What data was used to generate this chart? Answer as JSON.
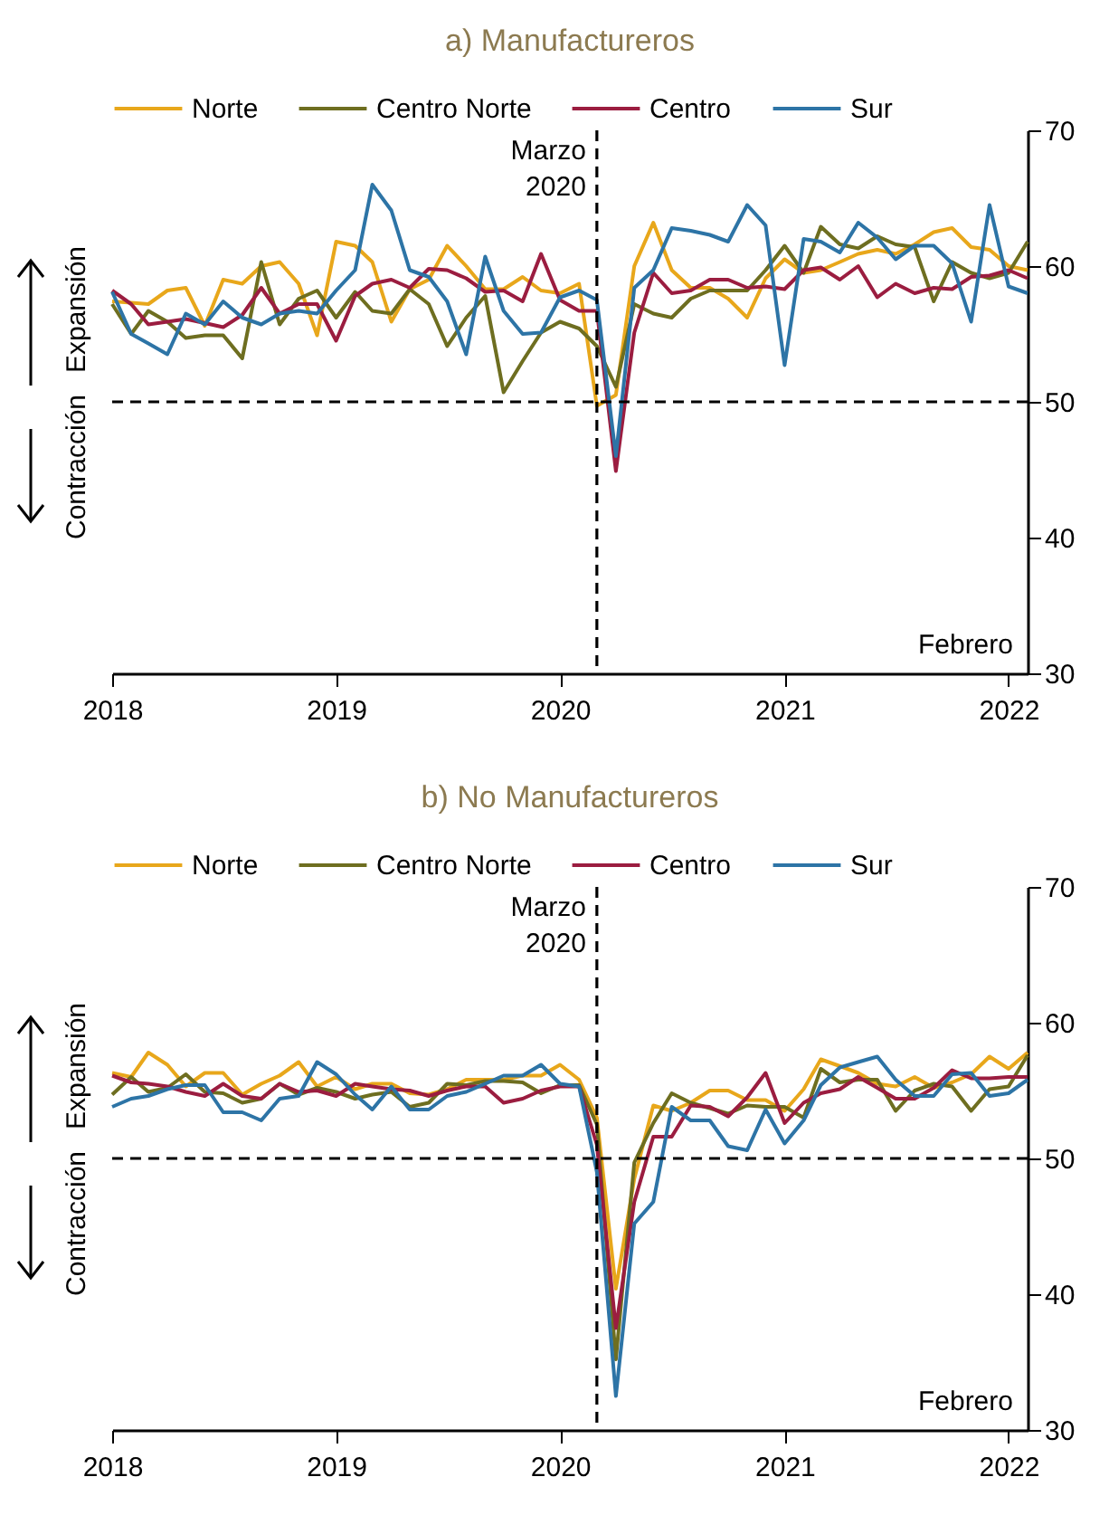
{
  "chart_data": [
    {
      "type": "line",
      "title": "a) Manufactureros",
      "annotations": [
        "Expansión",
        "Contracción",
        "Febrero"
      ],
      "legend": "top",
      "line_style": "solid",
      "grid": false,
      "x": [
        "2018-01",
        "2018-02",
        "2018-03",
        "2018-04",
        "2018-05",
        "2018-06",
        "2018-07",
        "2018-08",
        "2018-09",
        "2018-10",
        "2018-11",
        "2018-12",
        "2019-01",
        "2019-02",
        "2019-03",
        "2019-04",
        "2019-05",
        "2019-06",
        "2019-07",
        "2019-08",
        "2019-09",
        "2019-10",
        "2019-11",
        "2019-12",
        "2020-01",
        "2020-02",
        "2020-03",
        "2020-04",
        "2020-05",
        "2020-06",
        "2020-07",
        "2020-08",
        "2020-09",
        "2020-10",
        "2020-11",
        "2020-12",
        "2021-01",
        "2021-02",
        "2021-03",
        "2021-04",
        "2021-05",
        "2021-06",
        "2021-07",
        "2021-08",
        "2021-09",
        "2021-10",
        "2021-11",
        "2021-12",
        "2022-01",
        "2022-02"
      ],
      "xlim": [
        "2018-01",
        "2022-02"
      ],
      "xticks": [
        {
          "value": "2018-01",
          "label": "2018"
        },
        {
          "value": "2019-01",
          "label": "2019"
        },
        {
          "value": "2020-01",
          "label": "2020"
        },
        {
          "value": "2021-01",
          "label": "2021"
        },
        {
          "value": "2022-01",
          "label": "2022"
        }
      ],
      "ylim": [
        30,
        70
      ],
      "yticks": [
        30,
        40,
        50,
        60,
        70
      ],
      "ref_lines": [
        {
          "axis": "y",
          "value": 50,
          "line_style": "dashed",
          "color": "#000000"
        },
        {
          "axis": "x",
          "value": "2020-03",
          "label": "Marzo 2020",
          "line_style": "dashed",
          "color": "#000000"
        }
      ],
      "series": [
        {
          "name": "Norte",
          "color": "#e8a71b",
          "values": [
            57.4,
            57.3,
            57.2,
            58.2,
            58.4,
            55.6,
            59.0,
            58.7,
            60.0,
            60.3,
            58.7,
            54.9,
            61.8,
            61.5,
            60.3,
            55.9,
            58.3,
            59.0,
            61.5,
            60.0,
            58.3,
            58.3,
            59.2,
            58.2,
            58.0,
            58.7,
            49.7,
            50.5,
            60.0,
            63.2,
            59.7,
            58.4,
            58.4,
            57.6,
            56.2,
            59.1,
            60.5,
            59.5,
            59.7,
            60.3,
            60.9,
            61.2,
            60.9,
            61.6,
            62.5,
            62.8,
            61.4,
            61.2,
            60.0,
            59.7
          ]
        },
        {
          "name": "Centro Norte",
          "color": "#6e6e20",
          "values": [
            57.2,
            55.0,
            56.7,
            55.9,
            54.7,
            54.9,
            54.9,
            53.2,
            60.3,
            55.7,
            57.6,
            58.2,
            56.2,
            58.1,
            56.7,
            56.5,
            58.3,
            57.2,
            54.1,
            56.2,
            57.8,
            50.7,
            53.0,
            55.1,
            55.9,
            55.4,
            54.1,
            51.1,
            57.2,
            56.5,
            56.2,
            57.6,
            58.2,
            58.2,
            58.2,
            59.7,
            61.5,
            59.5,
            62.9,
            61.6,
            61.3,
            62.2,
            61.6,
            61.4,
            57.4,
            60.3,
            59.5,
            59.1,
            59.5,
            61.8
          ]
        },
        {
          "name": "Centro",
          "color": "#9b1d40",
          "values": [
            58.2,
            57.2,
            55.7,
            55.9,
            56.1,
            55.8,
            55.5,
            56.4,
            58.4,
            56.5,
            57.2,
            57.2,
            54.5,
            57.8,
            58.7,
            59.0,
            58.4,
            59.8,
            59.7,
            59.1,
            58.1,
            58.2,
            57.4,
            60.9,
            57.5,
            56.7,
            56.7,
            44.9,
            55.1,
            59.5,
            58.0,
            58.2,
            59.0,
            59.0,
            58.4,
            58.5,
            58.3,
            59.7,
            59.9,
            59.0,
            60.0,
            57.7,
            58.7,
            58.0,
            58.4,
            58.3,
            59.2,
            59.3,
            59.7,
            59.1
          ]
        },
        {
          "name": "Sur",
          "color": "#2d74a6",
          "values": [
            58.1,
            55.0,
            54.3,
            53.5,
            56.5,
            55.7,
            57.4,
            56.2,
            55.7,
            56.5,
            56.7,
            56.5,
            58.2,
            59.7,
            66.0,
            64.1,
            59.7,
            59.2,
            57.4,
            53.5,
            60.7,
            56.7,
            55.0,
            55.1,
            57.7,
            58.2,
            57.5,
            46.0,
            58.4,
            59.7,
            62.8,
            62.6,
            62.3,
            61.8,
            64.5,
            63.0,
            52.7,
            62.0,
            61.8,
            61.0,
            63.2,
            62.1,
            60.5,
            61.5,
            61.5,
            60.2,
            55.9,
            64.5,
            58.5,
            58.0
          ]
        }
      ]
    },
    {
      "type": "line",
      "title": "b) No Manufactureros",
      "annotations": [
        "Expansión",
        "Contracción",
        "Febrero"
      ],
      "legend": "top",
      "line_style": "solid",
      "grid": false,
      "x": [
        "2018-01",
        "2018-02",
        "2018-03",
        "2018-04",
        "2018-05",
        "2018-06",
        "2018-07",
        "2018-08",
        "2018-09",
        "2018-10",
        "2018-11",
        "2018-12",
        "2019-01",
        "2019-02",
        "2019-03",
        "2019-04",
        "2019-05",
        "2019-06",
        "2019-07",
        "2019-08",
        "2019-09",
        "2019-10",
        "2019-11",
        "2019-12",
        "2020-01",
        "2020-02",
        "2020-03",
        "2020-04",
        "2020-05",
        "2020-06",
        "2020-07",
        "2020-08",
        "2020-09",
        "2020-10",
        "2020-11",
        "2020-12",
        "2021-01",
        "2021-02",
        "2021-03",
        "2021-04",
        "2021-05",
        "2021-06",
        "2021-07",
        "2021-08",
        "2021-09",
        "2021-10",
        "2021-11",
        "2021-12",
        "2022-01",
        "2022-02"
      ],
      "xlim": [
        "2018-01",
        "2022-02"
      ],
      "xticks": [
        {
          "value": "2018-01",
          "label": "2018"
        },
        {
          "value": "2019-01",
          "label": "2019"
        },
        {
          "value": "2020-01",
          "label": "2020"
        },
        {
          "value": "2021-01",
          "label": "2021"
        },
        {
          "value": "2022-01",
          "label": "2022"
        }
      ],
      "ylim": [
        30,
        70
      ],
      "yticks": [
        30,
        40,
        50,
        60,
        70
      ],
      "ref_lines": [
        {
          "axis": "y",
          "value": 50,
          "line_style": "dashed",
          "color": "#000000"
        },
        {
          "axis": "x",
          "value": "2020-03",
          "label": "Marzo 2020",
          "line_style": "dashed",
          "color": "#000000"
        }
      ],
      "series": [
        {
          "name": "Norte",
          "color": "#e8a71b",
          "values": [
            56.3,
            56.0,
            57.8,
            56.9,
            55.3,
            56.3,
            56.3,
            54.7,
            55.5,
            56.1,
            57.1,
            55.3,
            56.0,
            55.1,
            55.5,
            55.5,
            54.8,
            54.7,
            55.1,
            55.8,
            55.8,
            55.8,
            56.1,
            56.1,
            56.9,
            55.8,
            53.0,
            40.4,
            48.5,
            53.9,
            53.5,
            54.1,
            55.0,
            55.0,
            54.3,
            54.3,
            53.5,
            55.1,
            57.3,
            56.8,
            56.3,
            55.5,
            55.3,
            56.0,
            55.2,
            55.6,
            56.2,
            57.5,
            56.6,
            57.8
          ]
        },
        {
          "name": "Centro Norte",
          "color": "#6e6e20",
          "values": [
            54.7,
            56.0,
            54.9,
            55.2,
            56.2,
            54.9,
            54.8,
            54.1,
            54.4,
            55.5,
            54.7,
            55.2,
            54.9,
            54.4,
            54.7,
            54.9,
            53.8,
            54.1,
            55.5,
            55.4,
            55.7,
            55.7,
            55.6,
            54.8,
            55.4,
            55.4,
            52.5,
            35.2,
            49.7,
            52.6,
            54.8,
            54.1,
            53.7,
            53.3,
            53.9,
            53.8,
            53.8,
            53.0,
            56.6,
            55.6,
            55.8,
            55.8,
            53.5,
            55.0,
            55.5,
            55.3,
            53.5,
            55.1,
            55.3,
            57.6
          ]
        },
        {
          "name": "Centro",
          "color": "#9b1d40",
          "values": [
            56.1,
            55.6,
            55.5,
            55.3,
            54.9,
            54.6,
            55.5,
            54.6,
            54.4,
            55.5,
            54.9,
            55.0,
            54.6,
            55.5,
            55.3,
            55.1,
            55.0,
            54.6,
            55.0,
            55.3,
            55.3,
            54.1,
            54.4,
            55.0,
            55.3,
            55.3,
            51.0,
            37.5,
            46.8,
            51.6,
            51.6,
            53.9,
            53.8,
            53.1,
            54.5,
            56.3,
            52.6,
            54.1,
            54.8,
            55.1,
            56.0,
            55.2,
            54.4,
            54.4,
            55.2,
            56.5,
            55.9,
            55.9,
            56.0,
            56.0
          ]
        },
        {
          "name": "Sur",
          "color": "#2d74a6",
          "values": [
            53.8,
            54.4,
            54.6,
            55.1,
            55.4,
            55.4,
            53.4,
            53.4,
            52.8,
            54.4,
            54.6,
            57.1,
            56.2,
            54.7,
            53.6,
            55.3,
            53.6,
            53.6,
            54.6,
            54.9,
            55.5,
            56.1,
            56.1,
            56.9,
            55.5,
            55.3,
            49.0,
            32.5,
            45.2,
            46.8,
            53.8,
            52.8,
            52.8,
            50.9,
            50.6,
            53.6,
            51.1,
            52.8,
            55.4,
            56.7,
            57.1,
            57.5,
            55.8,
            54.6,
            54.6,
            56.2,
            56.3,
            54.6,
            54.8,
            55.8
          ]
        }
      ]
    }
  ]
}
